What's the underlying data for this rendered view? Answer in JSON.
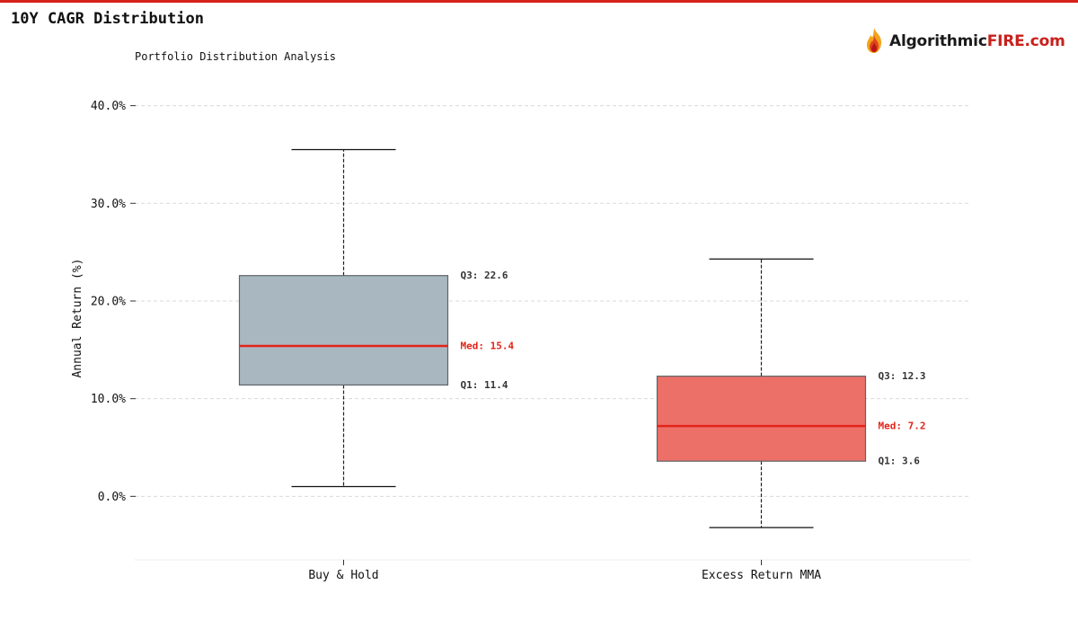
{
  "header": {
    "title": "10Y CAGR Distribution",
    "logo_text_main": "Algorithmic",
    "logo_text_accent": "FIRE.com",
    "logo_icon": "flame-icon"
  },
  "colors": {
    "accent": "#d6201a",
    "median": "#e2231a",
    "box_buy_hold": "#a9b8c0",
    "box_excess": "#ec7068"
  },
  "chart_data": {
    "type": "box",
    "title": "Portfolio Distribution Analysis",
    "ylabel": "Annual Return (%)",
    "xlabel": "",
    "ylim": [
      -6.5,
      43
    ],
    "yticks": [
      0,
      10,
      20,
      30,
      40
    ],
    "ytick_labels": [
      "0.0%",
      "10.0%",
      "20.0%",
      "30.0%",
      "40.0%"
    ],
    "grid": true,
    "categories": [
      "Buy & Hold",
      "Excess Return MMA"
    ],
    "boxes": [
      {
        "name": "Buy & Hold",
        "whisker_low": 1.0,
        "q1": 11.4,
        "median": 15.4,
        "q3": 22.6,
        "whisker_high": 35.5,
        "label_q3": "Q3: 22.6",
        "label_median": "Med: 15.4",
        "label_q1": "Q1: 11.4"
      },
      {
        "name": "Excess Return MMA",
        "whisker_low": -3.2,
        "q1": 3.6,
        "median": 7.2,
        "q3": 12.3,
        "whisker_high": 24.3,
        "label_q3": "Q3: 12.3",
        "label_median": "Med: 7.2",
        "label_q1": "Q1: 3.6"
      }
    ]
  }
}
